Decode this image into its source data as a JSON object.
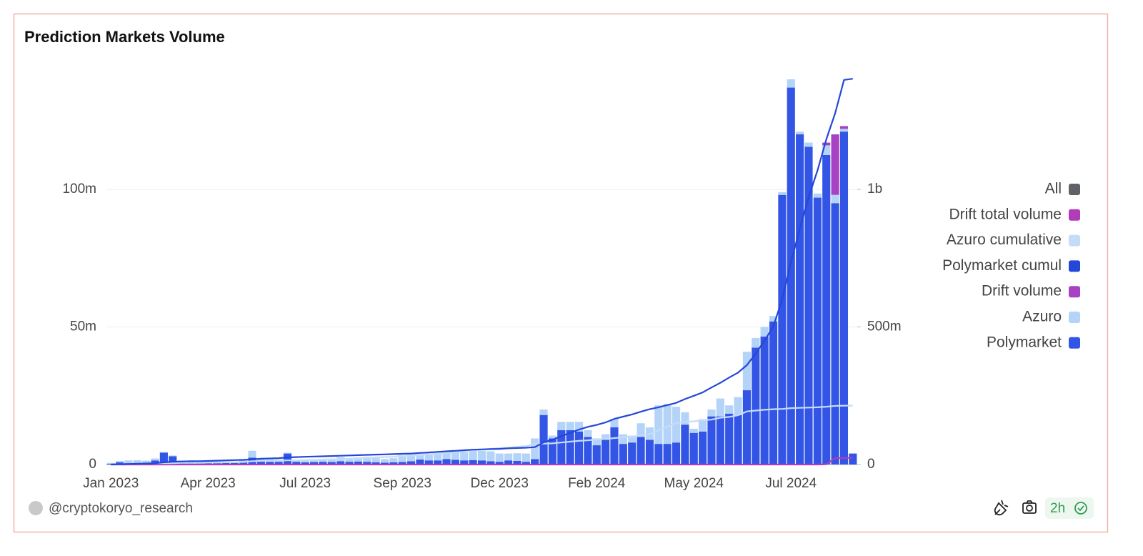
{
  "chart_data": {
    "type": "bar",
    "title": "Prediction Markets Volume",
    "categories": [
      "Jan 2023",
      null,
      null,
      null,
      null,
      null,
      null,
      null,
      null,
      null,
      null,
      "Apr 2023",
      null,
      null,
      null,
      null,
      null,
      null,
      null,
      null,
      null,
      null,
      "Jul 2023",
      null,
      null,
      null,
      null,
      null,
      null,
      null,
      null,
      null,
      null,
      "Sep 2023",
      null,
      null,
      null,
      null,
      null,
      null,
      null,
      null,
      null,
      null,
      "Dec 2023",
      null,
      null,
      null,
      null,
      null,
      null,
      null,
      null,
      null,
      null,
      "Feb 2024",
      null,
      null,
      null,
      null,
      null,
      null,
      null,
      null,
      null,
      null,
      "May 2024",
      null,
      null,
      null,
      null,
      null,
      null,
      null,
      null,
      null,
      null,
      "Jul 2024",
      null,
      null,
      null,
      null,
      null,
      null,
      null
    ],
    "ylim": [
      0,
      140
    ],
    "yticks": [
      0,
      {
        "value": 50,
        "label": "50m"
      },
      {
        "value": 100,
        "label": "100m"
      }
    ],
    "y2lim": [
      0,
      1400
    ],
    "y2ticks": [
      0,
      {
        "value": 500,
        "label": "500m"
      },
      {
        "value": 1000,
        "label": "1b"
      }
    ],
    "grid": true,
    "legend": "right",
    "series": [
      {
        "name": "All",
        "color": "#5f6368"
      },
      {
        "name": "Drift total volume",
        "color": "#b03cb8",
        "type": "line",
        "axis": "y2",
        "values": [
          0,
          0,
          0,
          0,
          0,
          0,
          0,
          0,
          0,
          0,
          0,
          0,
          0,
          0,
          0,
          0,
          0,
          0,
          0,
          0,
          0,
          0,
          0,
          0,
          0,
          0,
          0,
          0,
          0,
          0,
          0,
          0,
          0,
          0,
          0,
          0,
          0,
          0,
          0,
          0,
          0,
          0,
          0,
          0,
          0,
          0,
          0,
          0,
          0,
          0,
          0,
          0,
          0,
          0,
          0,
          0,
          0,
          0,
          0,
          0,
          0,
          0,
          0,
          0,
          0,
          0,
          0,
          0,
          0,
          0,
          0,
          0,
          0,
          0,
          0,
          0,
          0,
          0,
          0,
          0,
          0,
          1,
          23,
          24,
          24
        ]
      },
      {
        "name": "Azuro cumulative",
        "color": "#c5dcf8",
        "type": "line",
        "axis": "y2",
        "values": [
          0,
          1,
          2,
          3,
          4,
          5,
          5,
          5,
          6,
          6,
          6,
          7,
          7,
          8,
          8,
          9,
          12,
          13,
          14,
          14,
          15,
          15,
          16,
          17,
          18,
          19,
          20,
          21,
          23,
          24,
          26,
          27,
          28,
          31,
          33,
          35,
          37,
          40,
          42,
          45,
          48,
          51,
          54,
          57,
          60,
          62,
          64,
          67,
          74,
          76,
          77,
          80,
          83,
          86,
          88,
          91,
          93,
          96,
          99,
          101,
          106,
          110,
          124,
          138,
          151,
          155,
          157,
          161,
          163,
          170,
          173,
          179,
          193,
          196,
          199,
          201,
          202,
          205,
          206,
          207,
          208,
          210,
          213,
          214,
          214
        ]
      },
      {
        "name": "Polymarket cumul",
        "color": "#2447d8",
        "type": "line",
        "axis": "y2",
        "values": [
          0,
          1,
          2,
          3,
          4,
          5,
          8,
          10,
          11,
          12,
          12,
          13,
          14,
          15,
          16,
          17,
          19,
          21,
          22,
          23,
          26,
          27,
          28,
          29,
          30,
          31,
          32,
          33,
          34,
          35,
          36,
          37,
          38,
          39,
          40,
          42,
          44,
          46,
          48,
          50,
          52,
          54,
          55,
          56,
          57,
          59,
          60,
          61,
          63,
          81,
          90,
          103,
          115,
          127,
          137,
          144,
          153,
          166,
          174,
          182,
          192,
          201,
          208,
          216,
          224,
          238,
          250,
          262,
          280,
          297,
          316,
          334,
          361,
          403,
          450,
          502,
          600,
          737,
          857,
          972,
          1069,
          1182,
          1277,
          1398,
          1402
        ]
      },
      {
        "name": "Drift volume",
        "color": "#a742c4",
        "type": "bar",
        "values": [
          0,
          0,
          0,
          0,
          0,
          0,
          0,
          0,
          0,
          0,
          0,
          0,
          0,
          0,
          0,
          0,
          0,
          0,
          0,
          0,
          0,
          0,
          0,
          0,
          0,
          0,
          0,
          0,
          0,
          0,
          0,
          0,
          0,
          0,
          0,
          0,
          0,
          0,
          0,
          0,
          0,
          0,
          0,
          0,
          0,
          0,
          0,
          0,
          0,
          0,
          0,
          0,
          0,
          0,
          0,
          0,
          0,
          0,
          0,
          0,
          0,
          0,
          0,
          0,
          0,
          0,
          0,
          0,
          0,
          0,
          0,
          0,
          0,
          0,
          0,
          0,
          0,
          0,
          0,
          0,
          0,
          1,
          22,
          1,
          0
        ]
      },
      {
        "name": "Azuro",
        "color": "#b4d3f8",
        "type": "bar",
        "values": [
          0.3,
          0.5,
          1.0,
          1.0,
          0.8,
          0.7,
          0.3,
          0.3,
          0.3,
          0.3,
          0.4,
          0.4,
          0.5,
          0.6,
          0.5,
          1.0,
          2.5,
          0.8,
          0.9,
          0.8,
          0.3,
          0.5,
          0.6,
          0.7,
          0.8,
          1.0,
          1.5,
          1.2,
          1.5,
          1.8,
          1.5,
          1.3,
          1.5,
          2.5,
          2.5,
          2.0,
          2.5,
          2.7,
          2.8,
          3.2,
          3.0,
          3.5,
          3.5,
          3.6,
          3.0,
          2.5,
          2.8,
          3.0,
          7.5,
          2.0,
          1.0,
          3.0,
          3.0,
          3.5,
          2.5,
          2.5,
          2.0,
          3.0,
          3.5,
          2.5,
          5.0,
          4.5,
          14,
          14.5,
          13,
          4.5,
          1.5,
          4.5,
          2.5,
          6.5,
          3.0,
          6.5,
          14,
          3.5,
          3.5,
          2.0,
          1.0,
          3.0,
          1.0,
          1.5,
          1.5,
          3.5,
          3.0,
          1.0,
          0
        ]
      },
      {
        "name": "Polymarket",
        "color": "#3355e6",
        "type": "bar",
        "values": [
          0.3,
          0.8,
          0.5,
          0.6,
          0.6,
          1.5,
          4.3,
          3.0,
          1.2,
          0.9,
          0.8,
          0.8,
          0.7,
          0.6,
          0.6,
          1.0,
          2.5,
          1.2,
          1.0,
          1.0,
          4.0,
          1.0,
          0.8,
          0.9,
          1.0,
          0.9,
          1.2,
          1.0,
          1.1,
          1.0,
          0.8,
          0.7,
          0.8,
          0.9,
          1.2,
          1.8,
          1.5,
          1.5,
          2.0,
          1.7,
          1.5,
          1.6,
          1.5,
          1.2,
          1.0,
          1.5,
          1.3,
          1.0,
          2.0,
          18,
          9.5,
          12.5,
          12.5,
          12,
          10,
          7,
          9,
          13.5,
          7.5,
          8,
          10,
          9,
          7.5,
          7.5,
          8,
          14.5,
          11.5,
          12,
          17.5,
          17.5,
          18.5,
          18,
          27,
          42.5,
          46.5,
          52,
          98,
          137,
          120,
          115.5,
          97,
          112.5,
          95,
          121,
          4
        ]
      }
    ]
  },
  "footer": {
    "author": "@cryptokoryo_research",
    "freshness": "2h"
  }
}
